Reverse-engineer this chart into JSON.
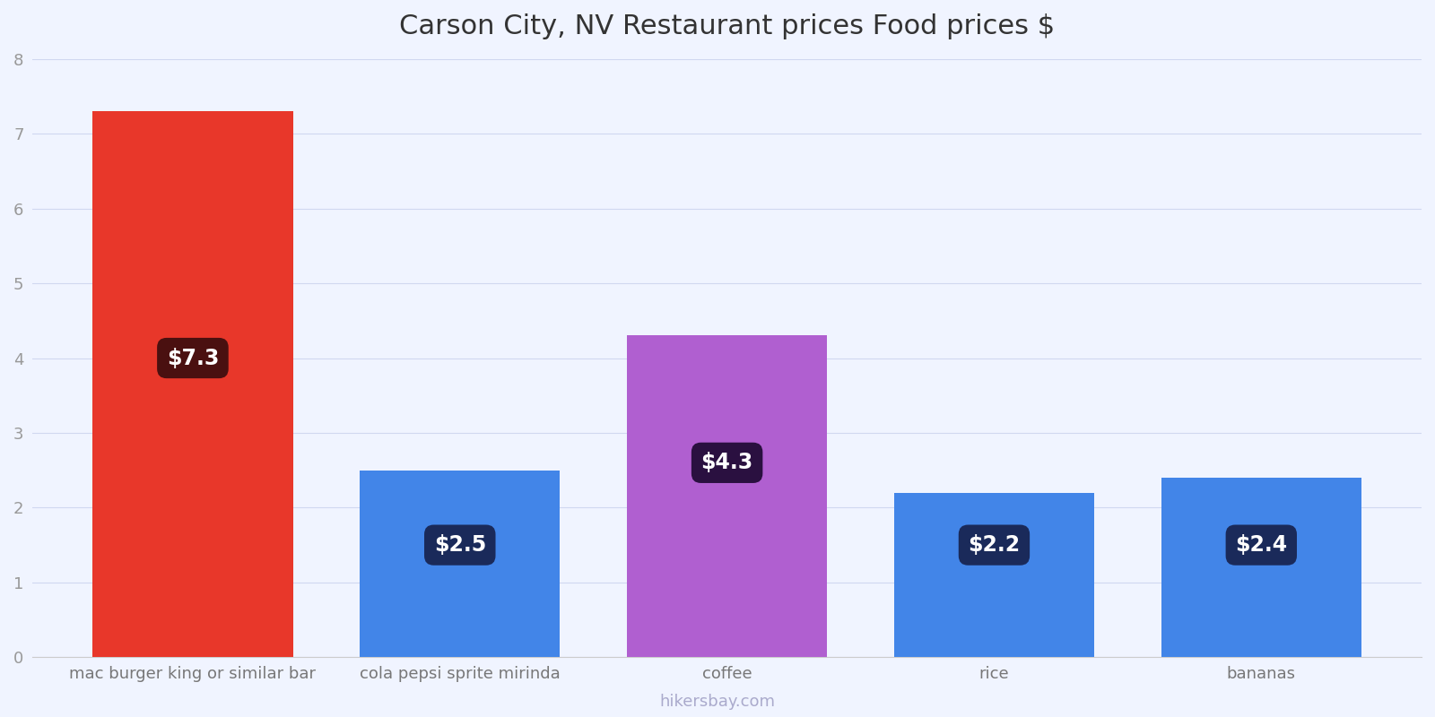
{
  "title": "Carson City, NV Restaurant prices Food prices $",
  "categories": [
    "mac burger king or similar bar",
    "cola pepsi sprite mirinda",
    "coffee",
    "rice",
    "bananas"
  ],
  "values": [
    7.3,
    2.5,
    4.3,
    2.2,
    2.4
  ],
  "bar_colors": [
    "#e8372a",
    "#4285e8",
    "#b05fd0",
    "#4285e8",
    "#4285e8"
  ],
  "label_texts": [
    "$7.3",
    "$2.5",
    "$4.3",
    "$2.2",
    "$2.4"
  ],
  "label_bg_colors": [
    "#4a1010",
    "#1a2a5a",
    "#2a1040",
    "#1a2a5a",
    "#1a2a5a"
  ],
  "label_y_positions": [
    4.0,
    1.5,
    2.6,
    1.5,
    1.5
  ],
  "ylim": [
    0,
    8
  ],
  "yticks": [
    0,
    1,
    2,
    3,
    4,
    5,
    6,
    7,
    8
  ],
  "watermark": "hikersbay.com",
  "background_color": "#f0f4ff",
  "title_fontsize": 22,
  "tick_fontsize": 13,
  "label_fontsize": 17,
  "watermark_fontsize": 13,
  "bar_width": 0.75
}
